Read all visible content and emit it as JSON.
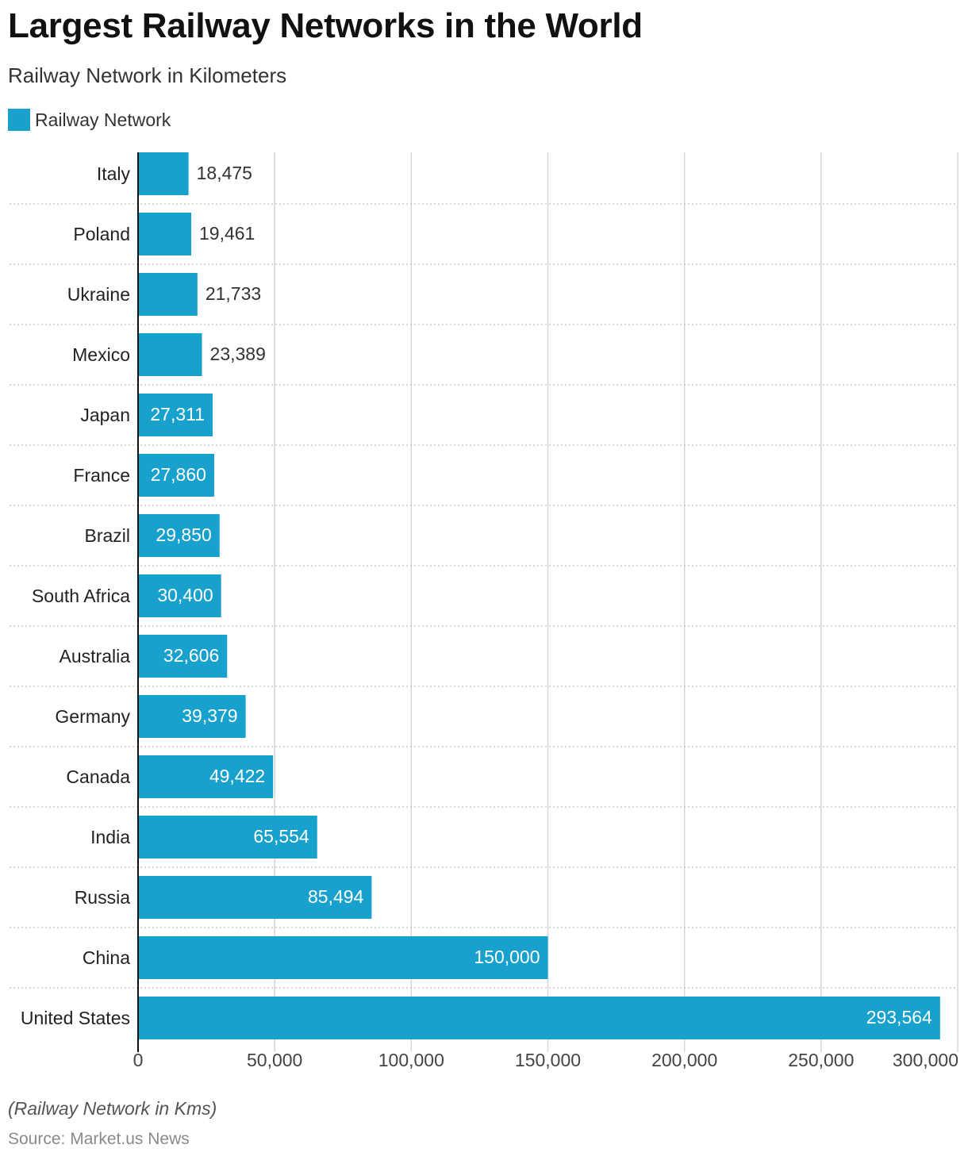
{
  "header": {
    "title": "Largest Railway Networks in the World",
    "subtitle": "Railway Network in Kilometers"
  },
  "legend": {
    "label": "Railway Network",
    "color": "#18a1cd"
  },
  "chart_data": {
    "type": "bar",
    "orientation": "horizontal",
    "categories": [
      "Italy",
      "Poland",
      "Ukraine",
      "Mexico",
      "Japan",
      "France",
      "Brazil",
      "South Africa",
      "Australia",
      "Germany",
      "Canada",
      "India",
      "Russia",
      "China",
      "United States"
    ],
    "series": [
      {
        "name": "Railway Network",
        "values": [
          18475,
          19461,
          21733,
          23389,
          27311,
          27860,
          29850,
          30400,
          32606,
          39379,
          49422,
          65554,
          85494,
          150000,
          293564
        ]
      }
    ],
    "data_labels": [
      "18,475",
      "19,461",
      "21,733",
      "23,389",
      "27,311",
      "27,860",
      "29,850",
      "30,400",
      "32,606",
      "39,379",
      "49,422",
      "65,554",
      "85,494",
      "150,000",
      "293,564"
    ],
    "xlim": [
      0,
      300000
    ],
    "x_ticks": [
      0,
      50000,
      100000,
      150000,
      200000,
      250000,
      300000
    ],
    "x_tick_labels": [
      "0",
      "50,000",
      "100,000",
      "150,000",
      "200,000",
      "250,000",
      "300,000"
    ],
    "grid": true,
    "legend_position": "top-left",
    "bar_color": "#18a1cd"
  },
  "footer": {
    "note": "(Railway Network in Kms)",
    "source": "Source: Market.us News"
  }
}
